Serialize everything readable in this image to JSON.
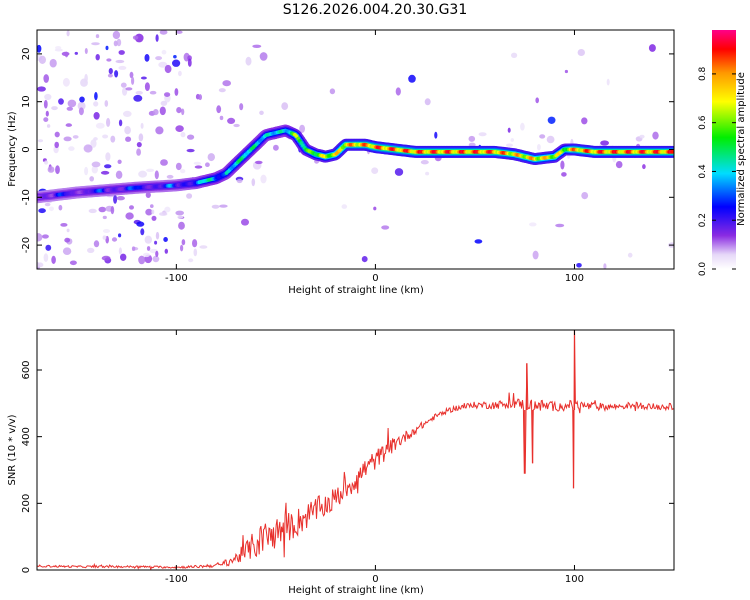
{
  "title": "S126.2026.004.20.30.G31",
  "chart_data": [
    {
      "type": "heatmap",
      "xlabel": "Height of straight line (km)",
      "ylabel": "Frequency (Hz)",
      "xlim": [
        -170,
        150
      ],
      "ylim": [
        -25,
        25
      ],
      "xticks": [
        -100,
        0,
        100
      ],
      "yticks": [
        -20,
        -10,
        0,
        10,
        20
      ],
      "colorbar": {
        "label": "Normalized spectral amplitude",
        "range": [
          0,
          0.98
        ],
        "ticks": [
          0.0,
          0.2,
          0.4,
          0.6,
          0.8
        ],
        "tick_labels": [
          "0.0",
          "0.2",
          "0.4",
          "0.6",
          "0.8"
        ]
      },
      "ridge": {
        "x": [
          -170,
          -150,
          -120,
          -100,
          -90,
          -80,
          -75,
          -70,
          -65,
          -60,
          -55,
          -50,
          -45,
          -40,
          -35,
          -30,
          -25,
          -20,
          -15,
          -10,
          -5,
          0,
          10,
          20,
          40,
          60,
          70,
          80,
          90,
          95,
          100,
          110,
          130,
          150
        ],
        "freq": [
          -10,
          -9,
          -8,
          -7.5,
          -7,
          -6,
          -5,
          -3,
          -1,
          1,
          3,
          3.5,
          4,
          3,
          0,
          -1,
          -1.5,
          -1,
          1,
          1,
          1,
          0.5,
          0,
          -0.5,
          -0.5,
          -0.5,
          -1,
          -2,
          -1.5,
          0,
          0,
          -0.5,
          -0.5,
          -0.5
        ],
        "amplitude": [
          0.25,
          0.25,
          0.3,
          0.3,
          0.4,
          0.5,
          0.45,
          0.5,
          0.55,
          0.5,
          0.45,
          0.5,
          0.45,
          0.7,
          0.6,
          0.7,
          0.75,
          0.8,
          0.85,
          0.9,
          0.9,
          0.95,
          0.95,
          0.95,
          0.95,
          0.95,
          0.85,
          0.85,
          0.8,
          0.7,
          0.9,
          0.95,
          0.95,
          0.95
        ]
      }
    },
    {
      "type": "line",
      "xlabel": "Height of straight line (km)",
      "ylabel": "SNR (10 * v/v)",
      "xlim": [
        -170,
        150
      ],
      "ylim": [
        0,
        720
      ],
      "xticks": [
        -100,
        0,
        100
      ],
      "yticks": [
        0,
        200,
        400,
        600
      ],
      "series": [
        {
          "name": "SNR",
          "color": "#e8302c",
          "x": [
            -170,
            -150,
            -120,
            -100,
            -90,
            -80,
            -75,
            -70,
            -65,
            -60,
            -55,
            -50,
            -45,
            -40,
            -35,
            -30,
            -25,
            -20,
            -15,
            -10,
            -5,
            0,
            5,
            10,
            15,
            20,
            25,
            30,
            35,
            40,
            50,
            60,
            70,
            80,
            90,
            100,
            110,
            120,
            130,
            140,
            150
          ],
          "y": [
            12,
            10,
            10,
            8,
            10,
            14,
            22,
            35,
            55,
            80,
            100,
            110,
            125,
            140,
            160,
            180,
            195,
            215,
            245,
            270,
            305,
            330,
            355,
            380,
            400,
            420,
            440,
            460,
            475,
            485,
            495,
            495,
            500,
            495,
            490,
            495,
            490,
            490,
            495,
            490,
            490
          ],
          "noise": [
            3,
            3,
            3,
            3,
            4,
            6,
            10,
            18,
            30,
            45,
            50,
            50,
            45,
            45,
            40,
            38,
            36,
            35,
            35,
            34,
            32,
            30,
            26,
            22,
            18,
            12,
            10,
            8,
            8,
            8,
            10,
            12,
            15,
            20,
            14,
            15,
            12,
            10,
            10,
            10,
            10
          ],
          "spikes": [
            {
              "x": 75,
              "y": 290
            },
            {
              "x": 76,
              "y": 620
            },
            {
              "x": 79,
              "y": 320
            },
            {
              "x": 99.5,
              "y": 245
            },
            {
              "x": 100,
              "y": 720
            }
          ]
        }
      ]
    }
  ]
}
